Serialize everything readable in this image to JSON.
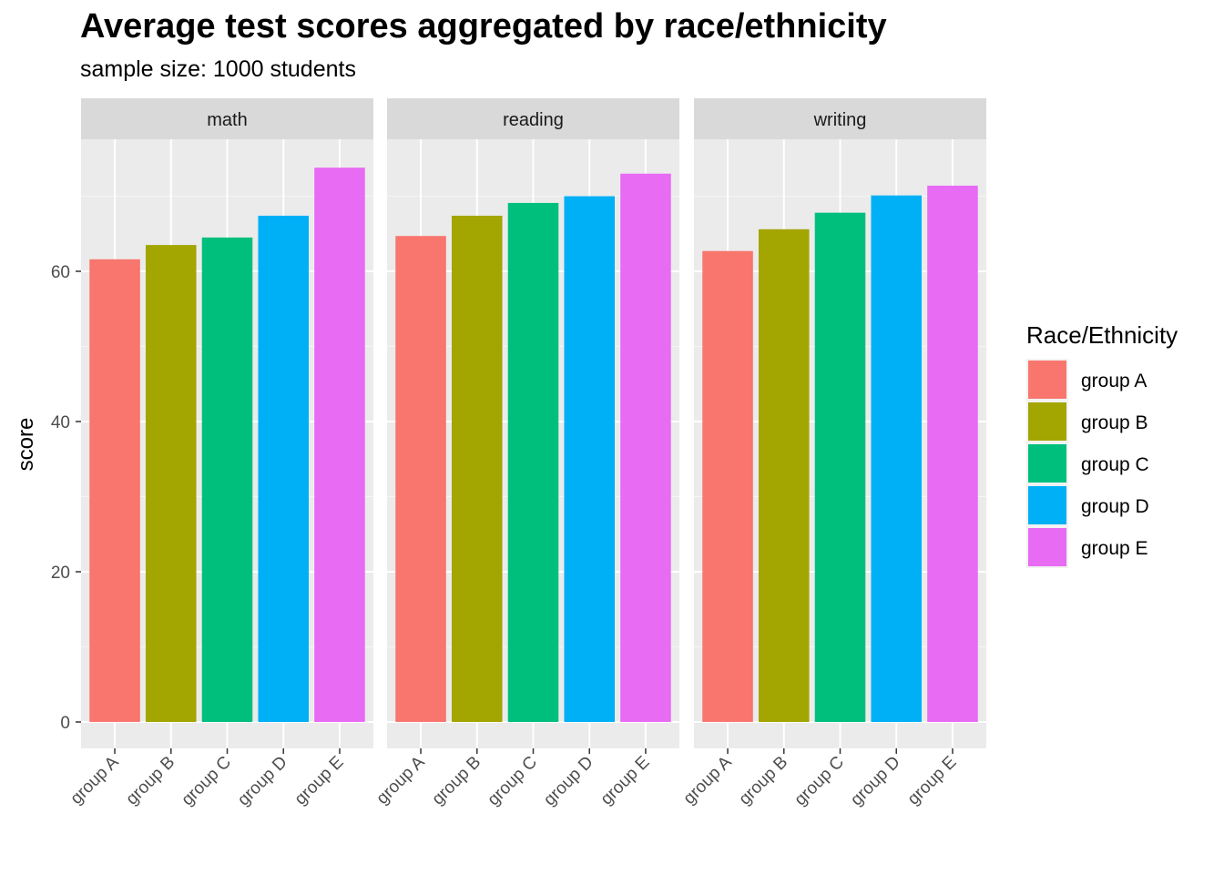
{
  "chart_data": {
    "type": "bar",
    "title": "Average test scores aggregated by race/ethnicity",
    "subtitle": "sample size: 1000 students",
    "xlabel": "",
    "ylabel": "score",
    "ylim": [
      0,
      76.5
    ],
    "yticks": [
      0,
      20,
      40,
      60
    ],
    "grid": true,
    "categories": [
      "group A",
      "group B",
      "group C",
      "group D",
      "group E"
    ],
    "facets": [
      {
        "name": "math",
        "values": [
          61.6,
          63.5,
          64.5,
          67.4,
          73.8
        ]
      },
      {
        "name": "reading",
        "values": [
          64.7,
          67.4,
          69.1,
          70.0,
          73.0
        ]
      },
      {
        "name": "writing",
        "values": [
          62.7,
          65.6,
          67.8,
          70.1,
          71.4
        ]
      }
    ],
    "legend": {
      "title": "Race/Ethnicity",
      "placement": "right",
      "entries": [
        "group A",
        "group B",
        "group C",
        "group D",
        "group E"
      ]
    },
    "colors": [
      "#F8766D",
      "#A3A500",
      "#00BF7D",
      "#00B0F6",
      "#E76BF3"
    ]
  }
}
